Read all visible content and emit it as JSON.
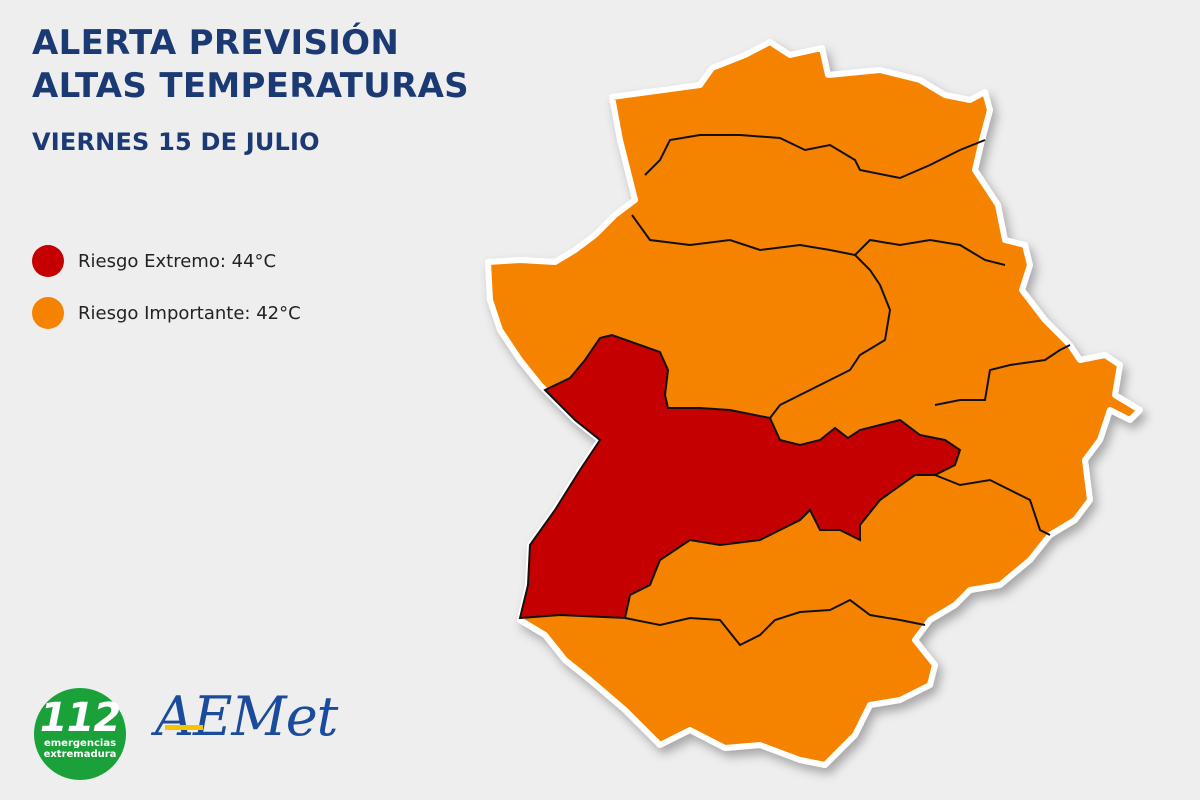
{
  "header": {
    "title_line1": "ALERTA PREVISIÓN",
    "title_line2": "ALTAS TEMPERATURAS",
    "date": "VIERNES 15 DE JULIO"
  },
  "legend": [
    {
      "label": "Riesgo Extremo: 44°C",
      "color": "#c40000"
    },
    {
      "label": "Riesgo Importante: 42°C",
      "color": "#f58300"
    }
  ],
  "logos": {
    "emergencias_number": "112",
    "emergencias_line1": "emergencias",
    "emergencias_line2": "extremadura",
    "aemet": "AEMet"
  },
  "map": {
    "extreme_color": "#c40000",
    "important_color": "#f58300",
    "zones": [
      {
        "id": "north",
        "level": "important"
      },
      {
        "id": "north-central",
        "level": "important"
      },
      {
        "id": "west",
        "level": "important"
      },
      {
        "id": "east-central",
        "level": "important"
      },
      {
        "id": "central-west",
        "level": "extreme"
      },
      {
        "id": "east",
        "level": "important"
      },
      {
        "id": "south-central",
        "level": "important"
      },
      {
        "id": "south",
        "level": "important"
      }
    ]
  }
}
